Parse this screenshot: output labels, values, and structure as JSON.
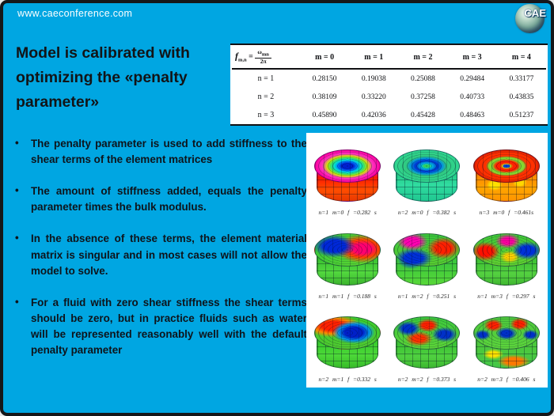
{
  "slide": {
    "background": "#00a6e2",
    "border_color": "#15171a",
    "panel_color": "#ffffff",
    "text_color": "#0e141b"
  },
  "header": {
    "website": "www.caeconference.com",
    "logo_text": "CAE"
  },
  "title": "Model is calibrated with optimizing the «penalty parameter»",
  "bullets": [
    "The penalty parameter is used to add stiffness to the shear terms of the element matrices",
    "The amount of stiffness added, equals the penalty parameter times the bulk modulus.",
    "In the absence of these terms, the element material matrix is singular and in most cases will not allow the model to solve.",
    "For a fluid with zero shear stiffness the shear terms should be zero, but in practice fluids such as water will be represented reasonably well with the default penalty parameter"
  ],
  "table": {
    "formula": {
      "symbol": "f",
      "subscript": "m,n",
      "equals": "=",
      "numerator": "ω",
      "numerator_sub": "mn",
      "denominator": "2π"
    },
    "col_headers": [
      "m = 0",
      "m = 1",
      "m = 2",
      "m = 3",
      "m = 4"
    ],
    "rows": [
      {
        "label": "n = 1",
        "values": [
          "0.28150",
          "0.19038",
          "0.25088",
          "0.29484",
          "0.33177"
        ]
      },
      {
        "label": "n = 2",
        "values": [
          "0.38109",
          "0.33220",
          "0.37258",
          "0.40733",
          "0.43835"
        ]
      },
      {
        "label": "n = 3",
        "values": [
          "0.45890",
          "0.42036",
          "0.45428",
          "0.48463",
          "0.51237"
        ]
      }
    ]
  },
  "figures": {
    "cells": [
      {
        "caption": "n=1 m=0 f =0.282 s",
        "mode": "m-r1c1"
      },
      {
        "caption": "n=2 m=0 f =0.382 s",
        "mode": "m-r1c2"
      },
      {
        "caption": "n=3 m=0 f =0.461s",
        "mode": "m-r1c3"
      },
      {
        "caption": "n=1 m=1 f =0.188 s",
        "mode": "m-r2c1"
      },
      {
        "caption": "n=1 m=2 f =0.251 s",
        "mode": "m-r2c2"
      },
      {
        "caption": "n=1 m=3 f =0.297 s",
        "mode": "m-r2c3"
      },
      {
        "caption": "n=2 m=1 f =0.332 s",
        "mode": "m-r3c1"
      },
      {
        "caption": "n=2 m=2 f =0.373 s",
        "mode": "m-r3c2"
      },
      {
        "caption": "n=2 m=3 f =0.406 s",
        "mode": "m-r3c3"
      }
    ]
  }
}
